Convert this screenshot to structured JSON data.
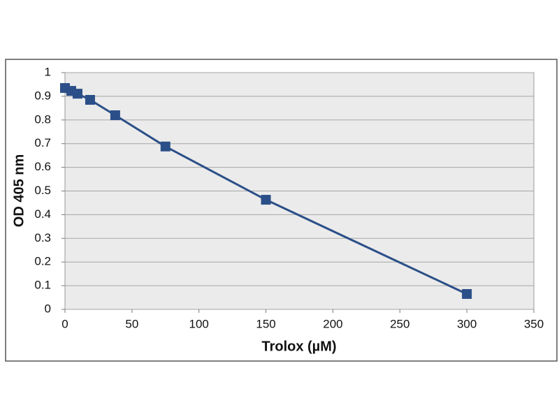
{
  "chart_data": {
    "type": "line",
    "x_label": "Trolox (µM)",
    "y_label": "OD 405 nm",
    "x": [
      0,
      4.69,
      9.375,
      18.75,
      37.5,
      75,
      150,
      300
    ],
    "series": [
      {
        "name": "OD 405 nm",
        "color": "#2b4f88",
        "values": [
          0.935,
          0.923,
          0.911,
          0.885,
          0.82,
          0.688,
          0.463,
          0.065
        ]
      }
    ],
    "xlim": [
      0,
      350
    ],
    "xticks": [
      0,
      50,
      100,
      150,
      200,
      250,
      300,
      350
    ],
    "ylim": [
      0,
      1
    ],
    "yticks": [
      0,
      0.1,
      0.2,
      0.3,
      0.4,
      0.5,
      0.6,
      0.7,
      0.8,
      0.9,
      1
    ],
    "grid": true
  }
}
